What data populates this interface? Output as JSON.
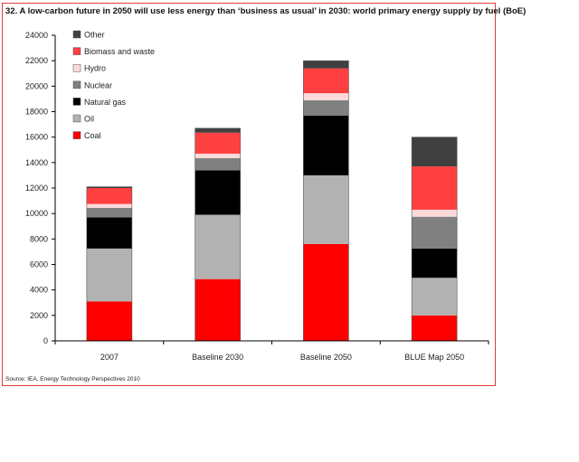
{
  "title": "32. A low-carbon future in 2050 will use less energy than ‘business as usual’ in 2030: world primary energy supply by fuel (BoE)",
  "source": "Source: IEA, Energy Technology Perspectives 2010",
  "chart_data": {
    "type": "bar",
    "stacked": true,
    "title": "32. A low-carbon future in 2050 will use less energy than ‘business as usual’ in 2030: world primary energy supply by fuel (BoE)",
    "categories": [
      "2007",
      "Baseline  2030",
      "Baseline  2050",
      "BLUE Map 2050"
    ],
    "ylim": [
      0,
      24000
    ],
    "yticks": [
      0,
      2000,
      4000,
      6000,
      8000,
      10000,
      12000,
      14000,
      16000,
      18000,
      20000,
      22000,
      24000
    ],
    "grid": false,
    "legend_position": "top-left",
    "series": [
      {
        "name": "Coal",
        "color": "#ff0000",
        "values": [
          3100,
          4850,
          7600,
          2000
        ]
      },
      {
        "name": "Oil",
        "color": "#b2b2b2",
        "values": [
          4150,
          5050,
          5400,
          2950
        ]
      },
      {
        "name": "Natural gas",
        "color": "#000000",
        "values": [
          2450,
          3500,
          4700,
          2300
        ]
      },
      {
        "name": "Nuclear",
        "color": "#808080",
        "values": [
          750,
          950,
          1200,
          2500
        ]
      },
      {
        "name": "Hydro",
        "color": "#fddada",
        "values": [
          300,
          350,
          550,
          550
        ]
      },
      {
        "name": "Biomass and waste",
        "color": "#ff4040",
        "values": [
          1250,
          1650,
          1950,
          3400
        ]
      },
      {
        "name": "Other",
        "color": "#404040",
        "values": [
          100,
          350,
          600,
          2300
        ]
      }
    ]
  }
}
